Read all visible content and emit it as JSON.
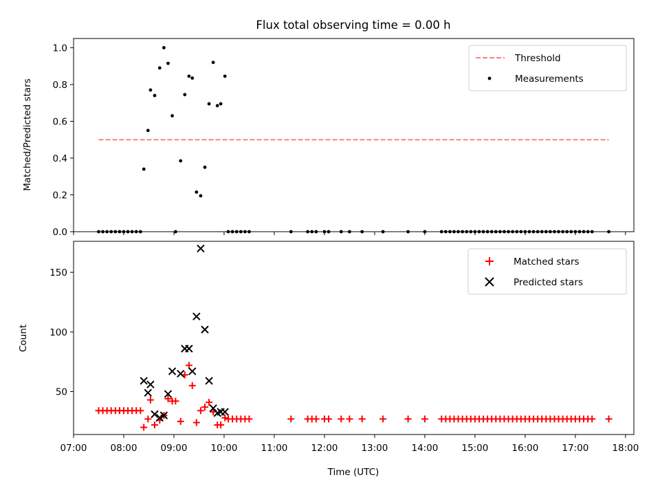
{
  "chart_data": [
    {
      "type": "scatter",
      "title": "Flux total observing time = 0.00 h",
      "xlabel": "",
      "ylabel": "Matched/Predicted stars",
      "xlim": [
        "07:00",
        "18:10"
      ],
      "ylim": [
        0,
        1.05
      ],
      "yticks": [
        "0.0",
        "0.2",
        "0.4",
        "0.6",
        "0.8",
        "1.0"
      ],
      "legend_position": "top-right",
      "threshold": {
        "name": "Threshold",
        "value": 0.5,
        "x_start": "07:30",
        "x_end": "17:40",
        "color": "#ff7f7f",
        "style": "dashed"
      },
      "series": [
        {
          "name": "Measurements",
          "color": "#000000",
          "marker": "dot",
          "x": [
            "07:30",
            "07:35",
            "07:40",
            "07:45",
            "07:50",
            "07:55",
            "08:00",
            "08:05",
            "08:10",
            "08:15",
            "08:20",
            "08:24",
            "08:29",
            "08:32",
            "08:37",
            "08:43",
            "08:48",
            "08:53",
            "08:58",
            "09:02",
            "09:08",
            "09:13",
            "09:18",
            "09:22",
            "09:27",
            "09:32",
            "09:37",
            "09:42",
            "09:47",
            "09:52",
            "09:56",
            "10:01",
            "10:05",
            "10:10",
            "10:15",
            "10:20",
            "10:25",
            "10:30",
            "11:20",
            "11:40",
            "11:45",
            "11:50",
            "12:00",
            "12:05",
            "12:20",
            "12:30",
            "12:45",
            "13:10",
            "13:40",
            "14:00",
            "14:20",
            "14:25",
            "14:30",
            "14:35",
            "14:40",
            "14:45",
            "14:50",
            "14:55",
            "15:00",
            "15:05",
            "15:10",
            "15:15",
            "15:20",
            "15:25",
            "15:30",
            "15:35",
            "15:40",
            "15:45",
            "15:50",
            "15:55",
            "16:00",
            "16:05",
            "16:10",
            "16:15",
            "16:20",
            "16:25",
            "16:30",
            "16:35",
            "16:40",
            "16:45",
            "16:50",
            "16:55",
            "17:00",
            "17:05",
            "17:10",
            "17:15",
            "17:20",
            "17:40"
          ],
          "y": [
            0,
            0,
            0,
            0,
            0,
            0,
            0,
            0,
            0,
            0,
            0,
            0.34,
            0.55,
            0.77,
            0.74,
            0.89,
            1.0,
            0.915,
            0.63,
            0,
            0.385,
            0.745,
            0.845,
            0.835,
            0.215,
            0.195,
            0.35,
            0.695,
            0.92,
            0.685,
            0.695,
            0.845,
            0,
            0,
            0,
            0,
            0,
            0,
            0,
            0,
            0,
            0,
            0,
            0,
            0,
            0,
            0,
            0,
            0,
            0,
            0,
            0,
            0,
            0,
            0,
            0,
            0,
            0,
            0,
            0,
            0,
            0,
            0,
            0,
            0,
            0,
            0,
            0,
            0,
            0,
            0,
            0,
            0,
            0,
            0,
            0,
            0,
            0,
            0,
            0,
            0,
            0,
            0,
            0,
            0,
            0,
            0,
            0
          ]
        }
      ]
    },
    {
      "type": "scatter",
      "title": "",
      "xlabel": "Time (UTC)",
      "ylabel": "Count",
      "xlim": [
        "07:00",
        "18:10"
      ],
      "ylim": [
        14,
        176
      ],
      "yticks": [
        "50",
        "100",
        "150"
      ],
      "xticks": [
        "07:00",
        "08:00",
        "09:00",
        "10:00",
        "11:00",
        "12:00",
        "13:00",
        "14:00",
        "15:00",
        "16:00",
        "17:00",
        "18:00"
      ],
      "legend_position": "top-right",
      "series": [
        {
          "name": "Matched stars",
          "color": "#ff0000",
          "marker": "plus",
          "x": [
            "07:30",
            "07:35",
            "07:40",
            "07:45",
            "07:50",
            "07:55",
            "08:00",
            "08:05",
            "08:10",
            "08:15",
            "08:20",
            "08:24",
            "08:29",
            "08:32",
            "08:37",
            "08:43",
            "08:48",
            "08:53",
            "08:58",
            "09:02",
            "09:08",
            "09:13",
            "09:18",
            "09:22",
            "09:27",
            "09:32",
            "09:37",
            "09:42",
            "09:47",
            "09:52",
            "09:56",
            "10:01",
            "10:05",
            "10:10",
            "10:15",
            "10:20",
            "10:25",
            "10:30",
            "11:20",
            "11:40",
            "11:45",
            "11:50",
            "12:00",
            "12:05",
            "12:20",
            "12:30",
            "12:45",
            "13:10",
            "13:40",
            "14:00",
            "14:20",
            "14:25",
            "14:30",
            "14:35",
            "14:40",
            "14:45",
            "14:50",
            "14:55",
            "15:00",
            "15:05",
            "15:10",
            "15:15",
            "15:20",
            "15:25",
            "15:30",
            "15:35",
            "15:40",
            "15:45",
            "15:50",
            "15:55",
            "16:00",
            "16:05",
            "16:10",
            "16:15",
            "16:20",
            "16:25",
            "16:30",
            "16:35",
            "16:40",
            "16:45",
            "16:50",
            "16:55",
            "17:00",
            "17:05",
            "17:10",
            "17:15",
            "17:20",
            "17:40"
          ],
          "y": [
            34,
            34,
            34,
            34,
            34,
            34,
            34,
            34,
            34,
            34,
            34,
            20,
            27,
            43,
            22,
            26,
            30,
            44,
            42,
            42,
            25,
            64,
            72,
            55,
            24,
            34,
            37,
            41,
            33,
            22,
            22,
            28,
            27,
            27,
            27,
            27,
            27,
            27,
            27,
            27,
            27,
            27,
            27,
            27,
            27,
            27,
            27,
            27,
            27,
            27,
            27,
            27,
            27,
            27,
            27,
            27,
            27,
            27,
            27,
            27,
            27,
            27,
            27,
            27,
            27,
            27,
            27,
            27,
            27,
            27,
            27,
            27,
            27,
            27,
            27,
            27,
            27,
            27,
            27,
            27,
            27,
            27,
            27,
            27,
            27,
            27,
            27,
            27
          ]
        },
        {
          "name": "Predicted stars",
          "color": "#000000",
          "marker": "x",
          "x": [
            "08:24",
            "08:29",
            "08:32",
            "08:37",
            "08:43",
            "08:48",
            "08:53",
            "08:58",
            "09:08",
            "09:13",
            "09:18",
            "09:22",
            "09:27",
            "09:32",
            "09:37",
            "09:42",
            "09:47",
            "09:52",
            "09:56",
            "10:01"
          ],
          "y": [
            59,
            49,
            56,
            31,
            28,
            30,
            48,
            67,
            65,
            86,
            86,
            67,
            113,
            170,
            102,
            59,
            36,
            32,
            33,
            33
          ]
        }
      ]
    }
  ]
}
